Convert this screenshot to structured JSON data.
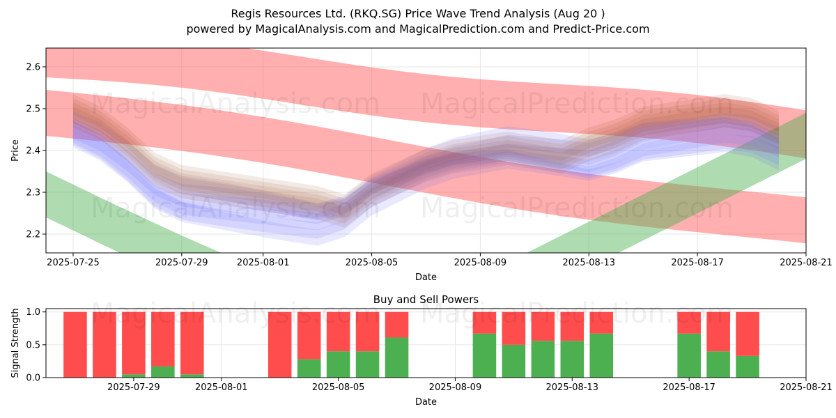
{
  "header": {
    "title": "Regis Resources Ltd. (RKQ.SG) Price Wave Trend Analysis (Aug 20 )",
    "subtitle": "powered by MagicalAnalysis.com and MagicalPrediction.com and Predict-Price.com"
  },
  "watermarks": [
    "MagicalAnalysis.com",
    "MagicalPrediction.com"
  ],
  "colors": {
    "red_band": "#ff4d4d",
    "green_band": "#4caf50",
    "blue_band": "#7070ff",
    "buy": "#4caf50",
    "sell": "#ff4d4d"
  },
  "chart_data": [
    {
      "type": "area",
      "title": "",
      "xlabel": "Date",
      "ylabel": "Price",
      "ylim": [
        2.155,
        2.645
      ],
      "xlim": [
        "2025-07-24",
        "2025-08-21"
      ],
      "x_ticks": [
        "2025-07-25",
        "2025-07-29",
        "2025-08-01",
        "2025-08-05",
        "2025-08-09",
        "2025-08-13",
        "2025-08-17",
        "2025-08-21"
      ],
      "y_ticks": [
        2.2,
        2.3,
        2.4,
        2.5,
        2.6
      ],
      "grid": true,
      "bands": [
        {
          "color": "red",
          "opacity": 0.45,
          "x": [
            "2025-07-24",
            "2025-08-21"
          ],
          "upper": [
            2.69,
            2.495
          ],
          "lower": [
            2.575,
            2.38
          ]
        },
        {
          "color": "red",
          "opacity": 0.45,
          "x": [
            "2025-07-24",
            "2025-08-21"
          ],
          "upper": [
            2.545,
            2.28
          ],
          "lower": [
            2.43,
            2.17
          ]
        },
        {
          "color": "green",
          "opacity": 0.45,
          "x": [
            "2025-07-24",
            "2025-08-21"
          ],
          "upper": [
            2.35,
            2.49
          ],
          "lower": [
            2.235,
            2.385
          ]
        },
        {
          "color": "blue",
          "opacity": 0.18,
          "x": [
            "2025-07-25",
            "2025-08-20"
          ],
          "upper": [
            2.485,
            2.47
          ],
          "lower": [
            2.4,
            2.355
          ]
        },
        {
          "color": "brown",
          "opacity": 0.18,
          "x": [
            "2025-07-25",
            "2025-08-20"
          ],
          "upper": [
            2.52,
            2.48
          ],
          "lower": [
            2.45,
            2.38
          ]
        }
      ]
    },
    {
      "type": "bar",
      "title": "Buy and Sell Powers",
      "xlabel": "Date",
      "ylabel": "Signal Strength",
      "ylim": [
        0,
        1.05
      ],
      "xlim": [
        "2025-07-26",
        "2025-08-21"
      ],
      "x_ticks": [
        "2025-07-29",
        "2025-08-01",
        "2025-08-05",
        "2025-08-09",
        "2025-08-13",
        "2025-08-17",
        "2025-08-21"
      ],
      "y_ticks": [
        0.0,
        0.5,
        1.0
      ],
      "grid": true,
      "categories": [
        "2025-07-27",
        "2025-07-28",
        "2025-07-29",
        "2025-07-30",
        "2025-07-31",
        "2025-08-03",
        "2025-08-04",
        "2025-08-05",
        "2025-08-06",
        "2025-08-07",
        "2025-08-10",
        "2025-08-11",
        "2025-08-12",
        "2025-08-13",
        "2025-08-14",
        "2025-08-17",
        "2025-08-18",
        "2025-08-19"
      ],
      "series": [
        {
          "name": "Buy",
          "values": [
            0.0,
            0.0,
            0.05,
            0.17,
            0.05,
            0.0,
            0.28,
            0.4,
            0.4,
            0.61,
            0.67,
            0.5,
            0.56,
            0.56,
            0.67,
            0.67,
            0.4,
            0.33
          ]
        },
        {
          "name": "Sell",
          "values": [
            1.0,
            1.0,
            0.95,
            0.83,
            0.95,
            1.0,
            0.72,
            0.6,
            0.6,
            0.39,
            0.33,
            0.5,
            0.44,
            0.44,
            0.33,
            0.33,
            0.6,
            0.67
          ]
        }
      ]
    }
  ]
}
